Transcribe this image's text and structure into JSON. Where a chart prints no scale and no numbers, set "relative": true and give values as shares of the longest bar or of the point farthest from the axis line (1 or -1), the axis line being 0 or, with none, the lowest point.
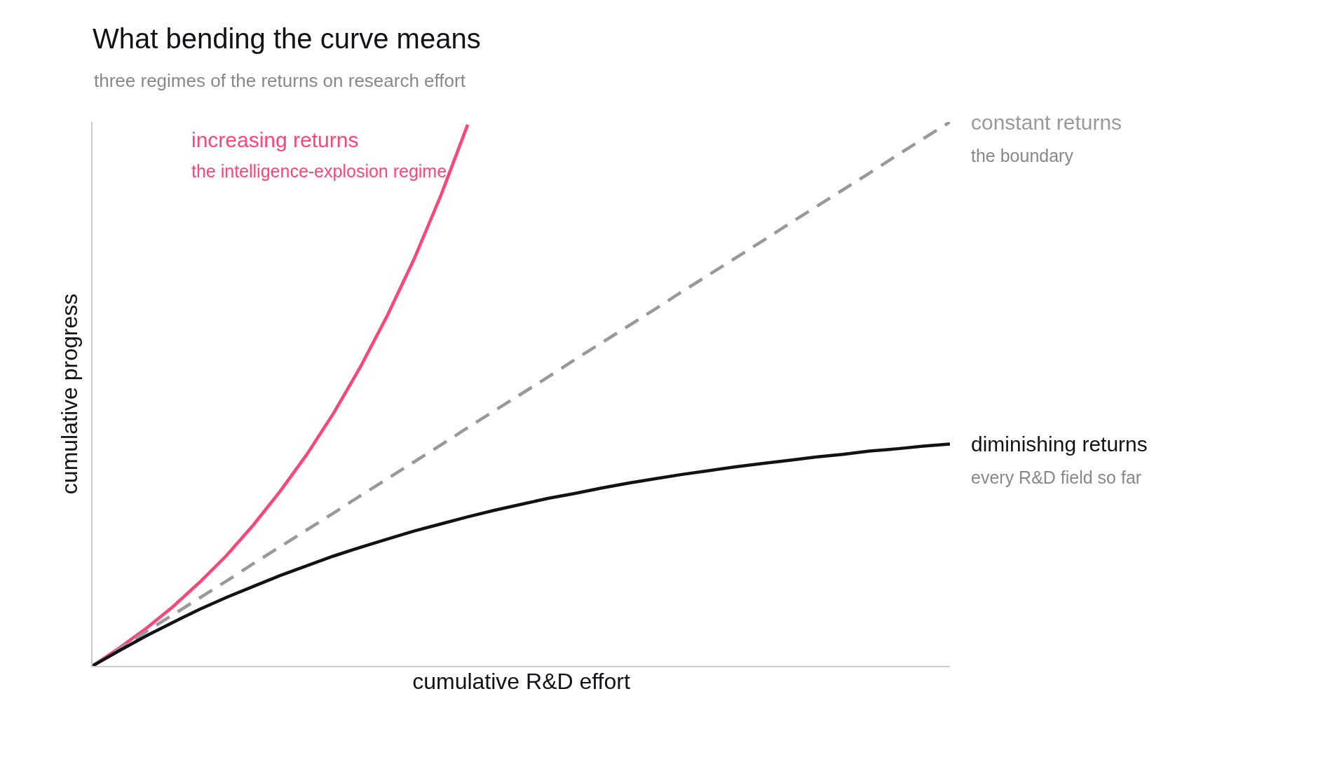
{
  "chart_data": {
    "type": "line",
    "title": "What bending the curve means",
    "subtitle": "three regimes of the returns on research effort",
    "xlabel": "cumulative R&D effort",
    "ylabel": "cumulative progress",
    "relative": true,
    "legend": false,
    "marker": "none",
    "categories": [
      null,
      null,
      null,
      null,
      null,
      null,
      null,
      null,
      null,
      null,
      null,
      null,
      null,
      null,
      null,
      null,
      null,
      null,
      null,
      null,
      null,
      null,
      null,
      null,
      null,
      null,
      null,
      null,
      null,
      null,
      null,
      null,
      null
    ],
    "series": [
      {
        "name": "increasing returns",
        "color": "#ff4477",
        "line_style": "solid",
        "values": [
          0,
          0.033,
          0.069,
          0.109,
          0.154,
          0.203,
          0.259,
          0.321,
          0.389,
          0.465,
          0.55,
          0.644,
          0.748,
          0.865,
          0.995,
          null,
          null,
          null,
          null,
          null,
          null,
          null,
          null,
          null,
          null,
          null,
          null,
          null,
          null,
          null,
          null,
          null,
          null
        ]
      },
      {
        "name": "constant returns",
        "color": "#999999",
        "line_style": "dashed",
        "values": [
          0,
          0.031,
          0.063,
          0.094,
          0.125,
          0.156,
          0.188,
          0.219,
          0.25,
          0.281,
          0.313,
          0.344,
          0.375,
          0.406,
          0.438,
          0.469,
          0.5,
          0.531,
          0.563,
          0.594,
          0.625,
          0.656,
          0.688,
          0.719,
          0.75,
          0.781,
          0.813,
          0.844,
          0.875,
          0.906,
          0.938,
          0.969,
          1
        ]
      },
      {
        "name": "diminishing returns",
        "color": "#111118",
        "line_style": "solid",
        "values": [
          0,
          0.028,
          0.055,
          0.08,
          0.104,
          0.126,
          0.146,
          0.166,
          0.184,
          0.202,
          0.218,
          0.233,
          0.248,
          0.261,
          0.274,
          0.286,
          0.297,
          0.308,
          0.317,
          0.327,
          0.336,
          0.344,
          0.352,
          0.359,
          0.366,
          0.372,
          0.378,
          0.384,
          0.389,
          0.395,
          0.399,
          0.404,
          0.408
        ]
      }
    ],
    "annotations": [
      "the intelligence-explosion regime",
      "the boundary",
      "every R&D field so far"
    ]
  }
}
